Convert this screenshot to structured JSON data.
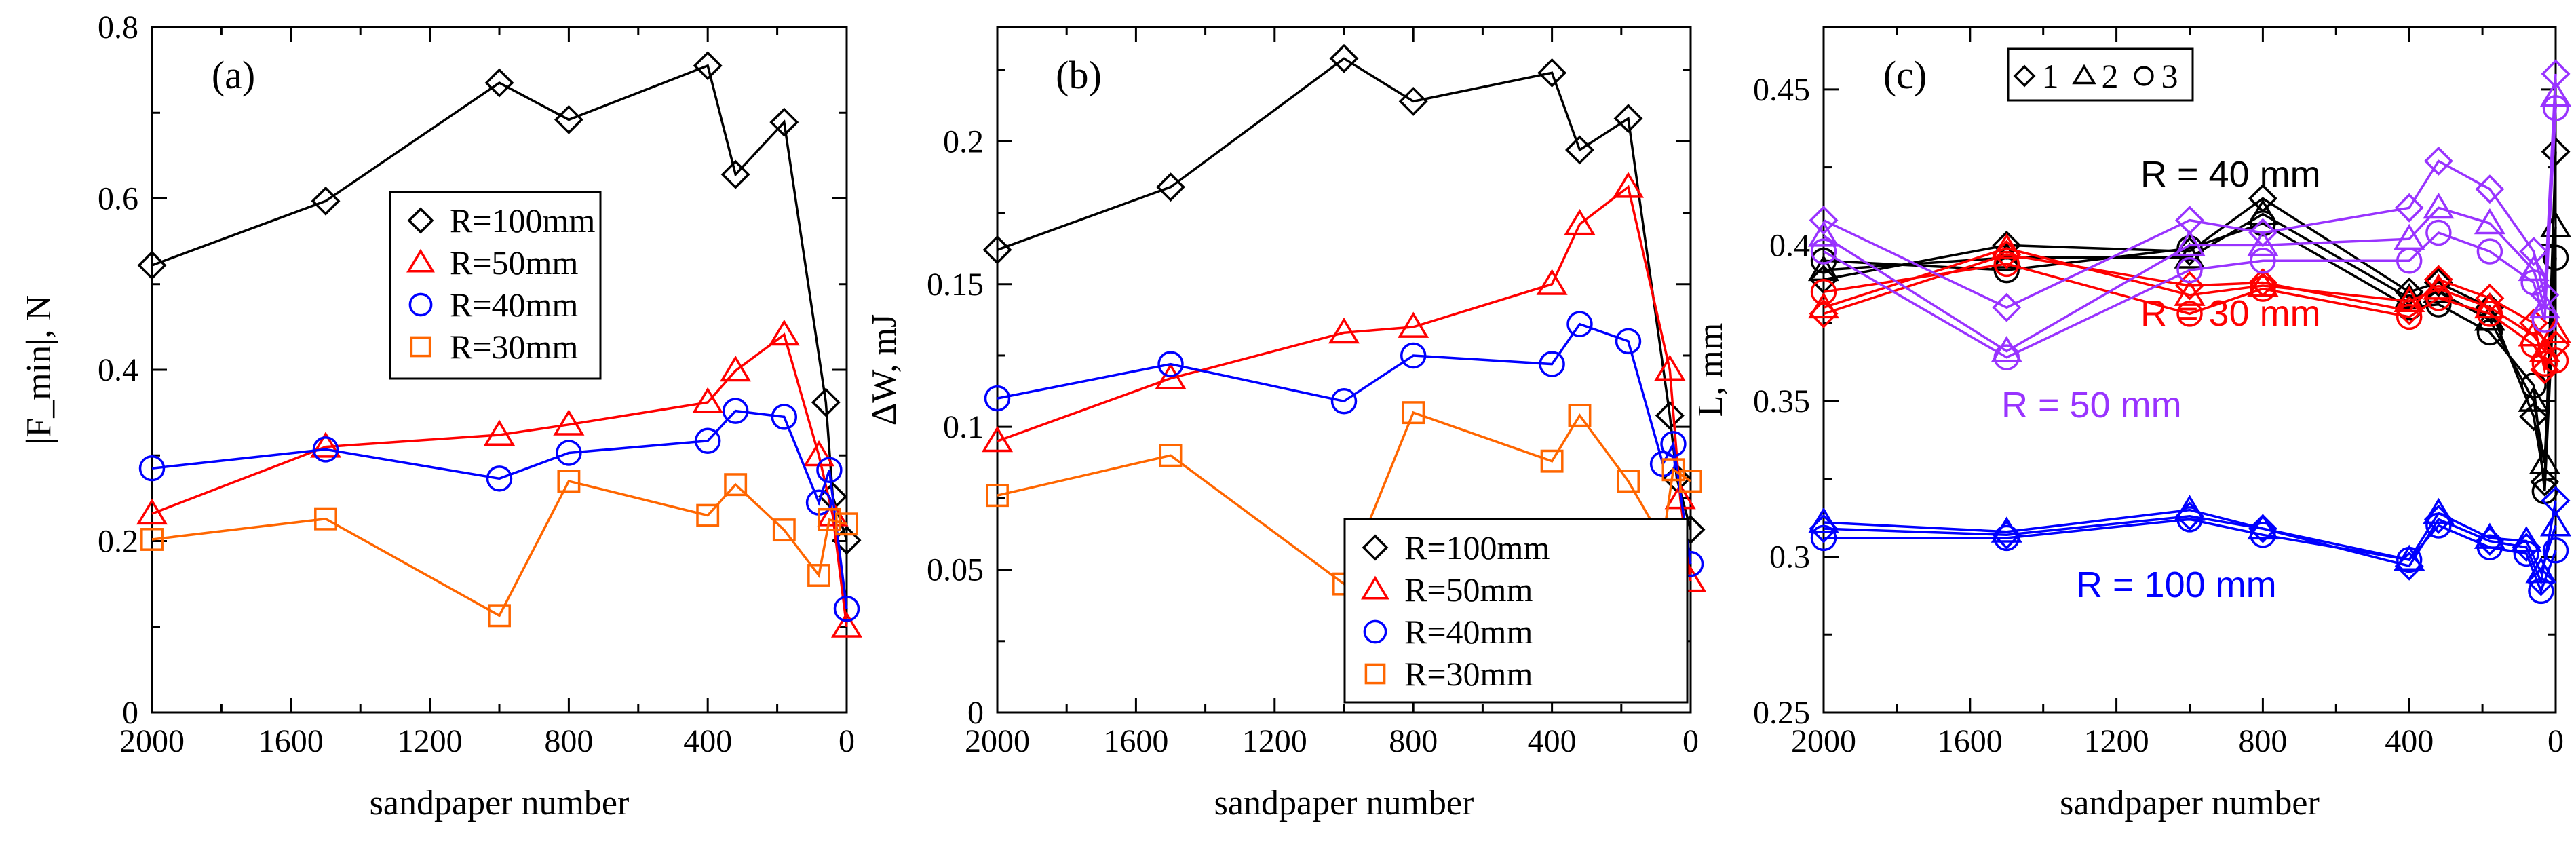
{
  "chart_data": [
    {
      "id": "a",
      "type": "line",
      "panel_label": "(a)",
      "xlabel": "sandpaper number",
      "ylabel": "|F_min|, N",
      "xlim": [
        2000,
        0
      ],
      "ylim": [
        0,
        0.8
      ],
      "xticks": [
        2000,
        1600,
        1200,
        800,
        400,
        0
      ],
      "yticks": [
        0,
        0.2,
        0.4,
        0.6,
        0.8
      ],
      "ytick_labels": [
        "0",
        "0.2",
        "0.4",
        "0.6",
        "0.8"
      ],
      "legend_location": "center",
      "series": [
        {
          "name": "R=100mm",
          "marker": "diamond",
          "color": "#000000",
          "x": [
            2000,
            1500,
            1000,
            800,
            400,
            320,
            180,
            60,
            40,
            0
          ],
          "y": [
            0.522,
            0.597,
            0.735,
            0.692,
            0.755,
            0.628,
            0.689,
            0.362,
            0.252,
            0.201
          ]
        },
        {
          "name": "R=50mm",
          "marker": "triangle",
          "color": "#ff0000",
          "x": [
            2000,
            1500,
            1000,
            800,
            400,
            320,
            180,
            80,
            40,
            0
          ],
          "y": [
            0.232,
            0.31,
            0.324,
            0.336,
            0.362,
            0.399,
            0.441,
            0.3,
            0.23,
            0.1
          ]
        },
        {
          "name": "R=40mm",
          "marker": "circle",
          "color": "#0000ff",
          "x": [
            2000,
            1500,
            1000,
            800,
            400,
            320,
            180,
            80,
            50,
            0
          ],
          "y": [
            0.285,
            0.307,
            0.273,
            0.303,
            0.317,
            0.352,
            0.345,
            0.245,
            0.283,
            0.121
          ]
        },
        {
          "name": "R=30mm",
          "marker": "square",
          "color": "#ff6600",
          "x": [
            2000,
            1500,
            1000,
            800,
            400,
            320,
            180,
            80,
            50,
            0
          ],
          "y": [
            0.202,
            0.226,
            0.113,
            0.27,
            0.23,
            0.266,
            0.213,
            0.16,
            0.225,
            0.22
          ]
        }
      ]
    },
    {
      "id": "b",
      "type": "line",
      "panel_label": "(b)",
      "xlabel": "sandpaper number",
      "ylabel": "ΔW, mJ",
      "xlim": [
        2000,
        0
      ],
      "ylim": [
        0,
        0.24
      ],
      "xticks": [
        2000,
        1600,
        1200,
        800,
        400,
        0
      ],
      "yticks": [
        0,
        0.05,
        0.1,
        0.15,
        0.2
      ],
      "ytick_labels": [
        "0",
        "0.05",
        "0.1",
        "0.15",
        "0.2"
      ],
      "legend_location": "bottom-right",
      "series": [
        {
          "name": "R=100mm",
          "marker": "diamond",
          "color": "#000000",
          "x": [
            2000,
            1500,
            1000,
            800,
            400,
            320,
            180,
            60,
            40,
            0
          ],
          "y": [
            0.162,
            0.184,
            0.229,
            0.214,
            0.224,
            0.197,
            0.208,
            0.104,
            0.082,
            0.064
          ]
        },
        {
          "name": "R=50mm",
          "marker": "triangle",
          "color": "#ff0000",
          "x": [
            2000,
            1500,
            1000,
            800,
            400,
            320,
            180,
            60,
            30,
            0
          ],
          "y": [
            0.095,
            0.117,
            0.133,
            0.135,
            0.15,
            0.171,
            0.184,
            0.12,
            0.075,
            0.046
          ]
        },
        {
          "name": "R=40mm",
          "marker": "circle",
          "color": "#0000ff",
          "x": [
            2000,
            1500,
            1000,
            800,
            400,
            320,
            180,
            80,
            50,
            0
          ],
          "y": [
            0.11,
            0.122,
            0.109,
            0.125,
            0.122,
            0.136,
            0.13,
            0.087,
            0.094,
            0.052
          ]
        },
        {
          "name": "R=30mm",
          "marker": "square",
          "color": "#ff6600",
          "x": [
            2000,
            1500,
            1000,
            800,
            400,
            320,
            180,
            80,
            50,
            0
          ],
          "y": [
            0.076,
            0.09,
            0.045,
            0.105,
            0.088,
            0.104,
            0.081,
            0.06,
            0.085,
            0.081
          ]
        }
      ]
    },
    {
      "id": "c",
      "type": "line",
      "panel_label": "(c)",
      "xlabel": "sandpaper number",
      "ylabel": "L, mm",
      "xlim": [
        2000,
        0
      ],
      "ylim": [
        0.25,
        0.47
      ],
      "xticks": [
        2000,
        1600,
        1200,
        800,
        400,
        0
      ],
      "yticks": [
        0.25,
        0.3,
        0.35,
        0.4,
        0.45
      ],
      "ytick_labels": [
        "0.25",
        "0.3",
        "0.35",
        "0.4",
        "0.45"
      ],
      "legend_location": "top-left",
      "legend_entries": [
        {
          "marker": "diamond",
          "label": "1"
        },
        {
          "marker": "triangle",
          "label": "2"
        },
        {
          "marker": "circle",
          "label": "3"
        }
      ],
      "annotations": [
        {
          "text": "R = 40 mm",
          "color": "#000000"
        },
        {
          "text": "R = 30 mm",
          "color": "#ff0000"
        },
        {
          "text": "R = 50 mm",
          "color": "#9933ff"
        },
        {
          "text": "R = 100 mm",
          "color": "#0000ff"
        }
      ],
      "series": [
        {
          "name": "R=40mm run 1",
          "marker": "diamond",
          "color": "#000000",
          "x": [
            2000,
            1500,
            1000,
            800,
            400,
            320,
            180,
            60,
            30,
            0
          ],
          "y": [
            0.389,
            0.4,
            0.398,
            0.415,
            0.385,
            0.388,
            0.38,
            0.345,
            0.324,
            0.43
          ]
        },
        {
          "name": "R=40mm run 2",
          "marker": "triangle",
          "color": "#000000",
          "x": [
            2000,
            1500,
            1000,
            800,
            400,
            320,
            180,
            60,
            30,
            0
          ],
          "y": [
            0.392,
            0.396,
            0.396,
            0.41,
            0.383,
            0.385,
            0.376,
            0.35,
            0.33,
            0.406
          ]
        },
        {
          "name": "R=40mm run 3",
          "marker": "circle",
          "color": "#000000",
          "x": [
            2000,
            1500,
            1000,
            800,
            400,
            320,
            180,
            60,
            30,
            0
          ],
          "y": [
            0.395,
            0.392,
            0.399,
            0.407,
            0.38,
            0.381,
            0.372,
            0.355,
            0.321,
            0.396
          ]
        },
        {
          "name": "R=30mm run 1",
          "marker": "diamond",
          "color": "#ff0000",
          "x": [
            2000,
            1500,
            1000,
            800,
            400,
            320,
            180,
            60,
            30,
            0
          ],
          "y": [
            0.378,
            0.397,
            0.387,
            0.388,
            0.379,
            0.389,
            0.383,
            0.375,
            0.36,
            0.368
          ]
        },
        {
          "name": "R=30mm run 2",
          "marker": "triangle",
          "color": "#ff0000",
          "x": [
            2000,
            1500,
            1000,
            800,
            400,
            320,
            180,
            60,
            30,
            0
          ],
          "y": [
            0.38,
            0.399,
            0.384,
            0.387,
            0.382,
            0.386,
            0.38,
            0.371,
            0.366,
            0.372
          ]
        },
        {
          "name": "R=30mm run 3",
          "marker": "circle",
          "color": "#ff0000",
          "x": [
            2000,
            1500,
            1000,
            800,
            400,
            320,
            180,
            60,
            30,
            0
          ],
          "y": [
            0.385,
            0.394,
            0.378,
            0.386,
            0.377,
            0.383,
            0.378,
            0.368,
            0.362,
            0.363
          ]
        },
        {
          "name": "R=50mm run 1",
          "marker": "diamond",
          "color": "#9933ff",
          "x": [
            2000,
            1500,
            1000,
            800,
            400,
            320,
            180,
            60,
            30,
            0
          ],
          "y": [
            0.408,
            0.38,
            0.408,
            0.404,
            0.412,
            0.427,
            0.418,
            0.398,
            0.384,
            0.455
          ]
        },
        {
          "name": "R=50mm run 2",
          "marker": "triangle",
          "color": "#9933ff",
          "x": [
            2000,
            1500,
            1000,
            800,
            400,
            320,
            180,
            60,
            30,
            0
          ],
          "y": [
            0.403,
            0.366,
            0.4,
            0.4,
            0.402,
            0.412,
            0.407,
            0.392,
            0.38,
            0.448
          ]
        },
        {
          "name": "R=50mm run 3",
          "marker": "circle",
          "color": "#9933ff",
          "x": [
            2000,
            1500,
            1000,
            800,
            400,
            320,
            180,
            60,
            30,
            0
          ],
          "y": [
            0.398,
            0.364,
            0.392,
            0.395,
            0.395,
            0.404,
            0.398,
            0.388,
            0.376,
            0.444
          ]
        },
        {
          "name": "R=100mm run 1",
          "marker": "diamond",
          "color": "#0000ff",
          "x": [
            2000,
            1500,
            1000,
            800,
            400,
            320,
            180,
            80,
            40,
            0
          ],
          "y": [
            0.309,
            0.307,
            0.313,
            0.309,
            0.297,
            0.312,
            0.305,
            0.303,
            0.292,
            0.318
          ]
        },
        {
          "name": "R=100mm run 2",
          "marker": "triangle",
          "color": "#0000ff",
          "x": [
            2000,
            1500,
            1000,
            800,
            400,
            320,
            180,
            80,
            40,
            0
          ],
          "y": [
            0.311,
            0.308,
            0.315,
            0.309,
            0.299,
            0.314,
            0.306,
            0.305,
            0.295,
            0.31
          ]
        },
        {
          "name": "R=100mm run 3",
          "marker": "circle",
          "color": "#0000ff",
          "x": [
            2000,
            1500,
            1000,
            800,
            400,
            320,
            180,
            80,
            40,
            0
          ],
          "y": [
            0.306,
            0.306,
            0.312,
            0.307,
            0.299,
            0.31,
            0.303,
            0.301,
            0.289,
            0.302
          ]
        }
      ]
    }
  ]
}
